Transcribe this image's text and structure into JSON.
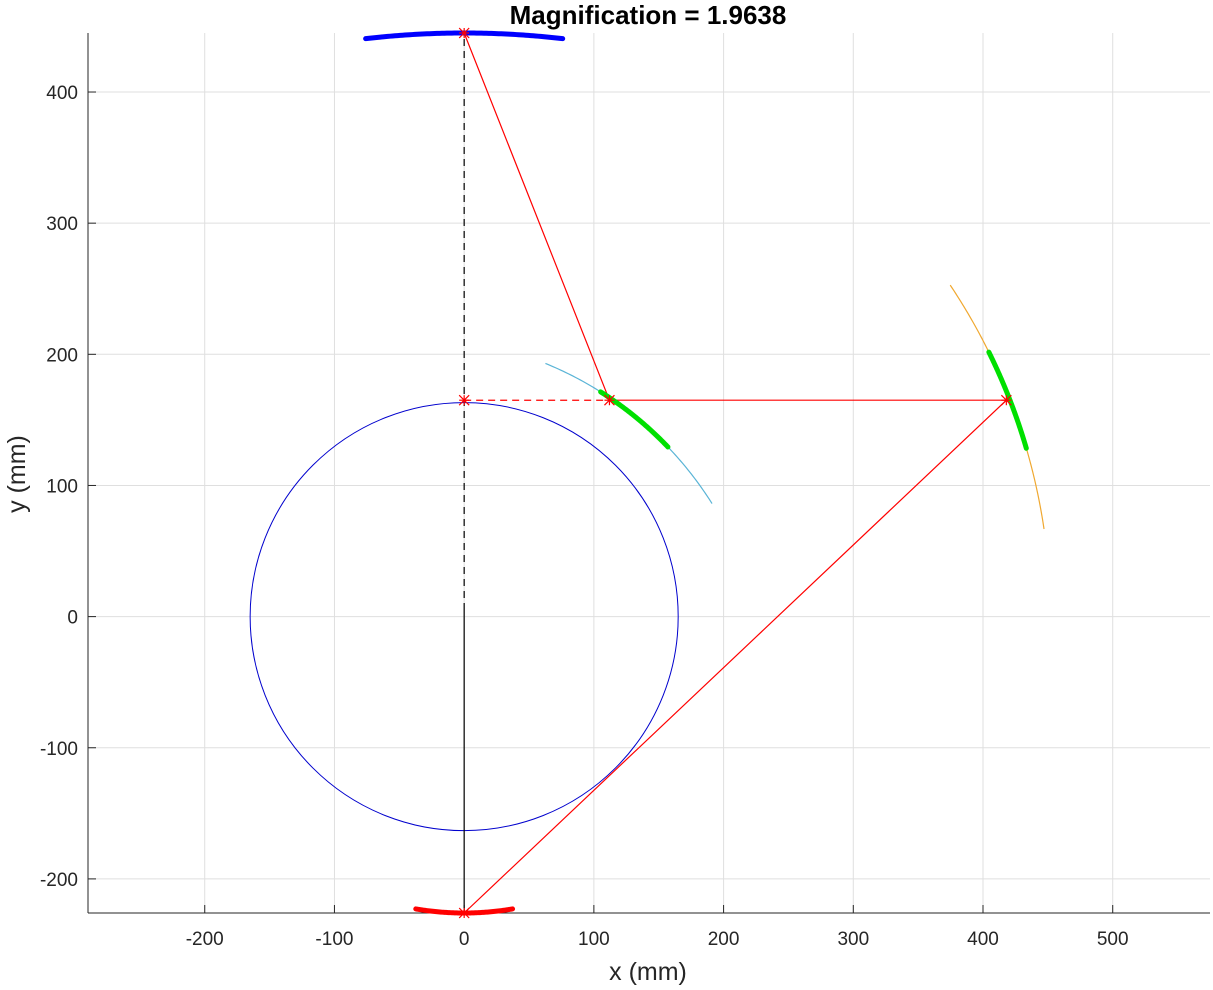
{
  "chart_data": {
    "type": "line",
    "title": "Magnification = 1.9638",
    "xlabel": "x (mm)",
    "ylabel": "y (mm)",
    "xlim": [
      -290,
      575
    ],
    "ylim": [
      -226,
      445
    ],
    "xticks": [
      -200,
      -100,
      0,
      100,
      200,
      300,
      400,
      500
    ],
    "yticks": [
      -200,
      -100,
      0,
      100,
      200,
      300,
      400
    ],
    "xtick_labels": [
      "-200",
      "-100",
      "0",
      "100",
      "200",
      "300",
      "400",
      "500"
    ],
    "ytick_labels": [
      "-200",
      "-100",
      "0",
      "100",
      "200",
      "300",
      "400"
    ],
    "grid": true,
    "circle": {
      "center": [
        0,
        0
      ],
      "radius": 165,
      "color": "#0000cd"
    },
    "source_arc": {
      "center": [
        0,
        0
      ],
      "radius": 226,
      "angle_range_deg": [
        -99.5,
        -80.5
      ],
      "color": "#ff0000"
    },
    "detector_arc": {
      "center": [
        0,
        -226
      ],
      "radius": 671,
      "angle_range_deg": [
        83.5,
        96.5
      ],
      "color": "#0000ff"
    },
    "crystal1_rowland": {
      "center": [
        -40,
        -61
      ],
      "radius": 274,
      "angle_range_deg": [
        32.5,
        68
      ],
      "color": "#5ab4d6"
    },
    "crystal1_active": {
      "center": [
        -40,
        -61
      ],
      "radius": 274,
      "angle_range_deg": [
        44,
        58
      ],
      "color": "#00e000"
    },
    "crystal2_rowland": {
      "center": [
        0,
        0
      ],
      "radius": 452,
      "angle_range_deg": [
        8.5,
        34
      ],
      "color": "#f0a830"
    },
    "crystal2_active": {
      "center": [
        0,
        0
      ],
      "radius": 452,
      "angle_range_deg": [
        16.5,
        26.5
      ],
      "color": "#00e000"
    },
    "ray_path": {
      "color": "#ff0000",
      "points": [
        [
          0,
          -226
        ],
        [
          418,
          165
        ],
        [
          112,
          165
        ],
        [
          0,
          445
        ]
      ]
    },
    "dashed_ray": {
      "color": "#ff0000",
      "points": [
        [
          0,
          165
        ],
        [
          112,
          165
        ]
      ]
    },
    "axis_dashed": {
      "color": "#000000",
      "points": [
        [
          0,
          5
        ],
        [
          0,
          445
        ]
      ]
    },
    "axis_solid": {
      "color": "#000000",
      "points": [
        [
          0,
          -226
        ],
        [
          0,
          5
        ]
      ]
    },
    "markers": [
      [
        0,
        -226
      ],
      [
        0,
        165
      ],
      [
        112,
        165
      ],
      [
        418,
        165
      ],
      [
        0,
        445
      ]
    ]
  }
}
